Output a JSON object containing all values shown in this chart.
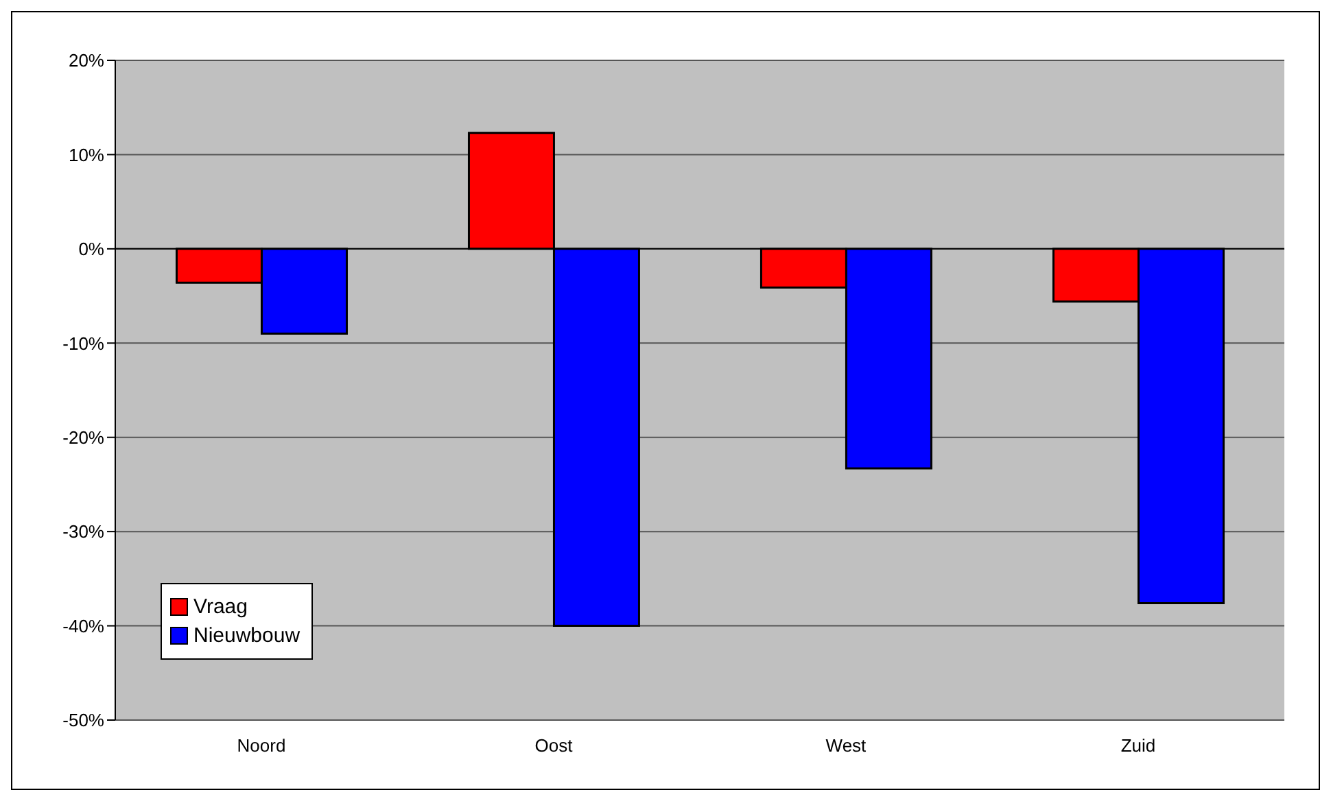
{
  "chart_data": {
    "type": "bar",
    "categories": [
      "Noord",
      "Oost",
      "West",
      "Zuid"
    ],
    "series": [
      {
        "name": "Vraag",
        "color": "#ff0000",
        "values": [
          -3.6,
          12.3,
          -4.1,
          -5.6
        ]
      },
      {
        "name": "Nieuwbouw",
        "color": "#0000ff",
        "values": [
          -9.0,
          -40.0,
          -23.3,
          -37.6
        ]
      }
    ],
    "ylim": [
      -50,
      20
    ],
    "yticks": [
      {
        "value": -50,
        "label": "-50%"
      },
      {
        "value": -40,
        "label": "-40%"
      },
      {
        "value": -30,
        "label": "-30%"
      },
      {
        "value": -20,
        "label": "-20%"
      },
      {
        "value": -10,
        "label": "-10%"
      },
      {
        "value": 0,
        "label": "0%"
      },
      {
        "value": 10,
        "label": "10%"
      },
      {
        "value": 20,
        "label": "20%"
      }
    ],
    "grid": "y",
    "legend": "bottom left"
  }
}
